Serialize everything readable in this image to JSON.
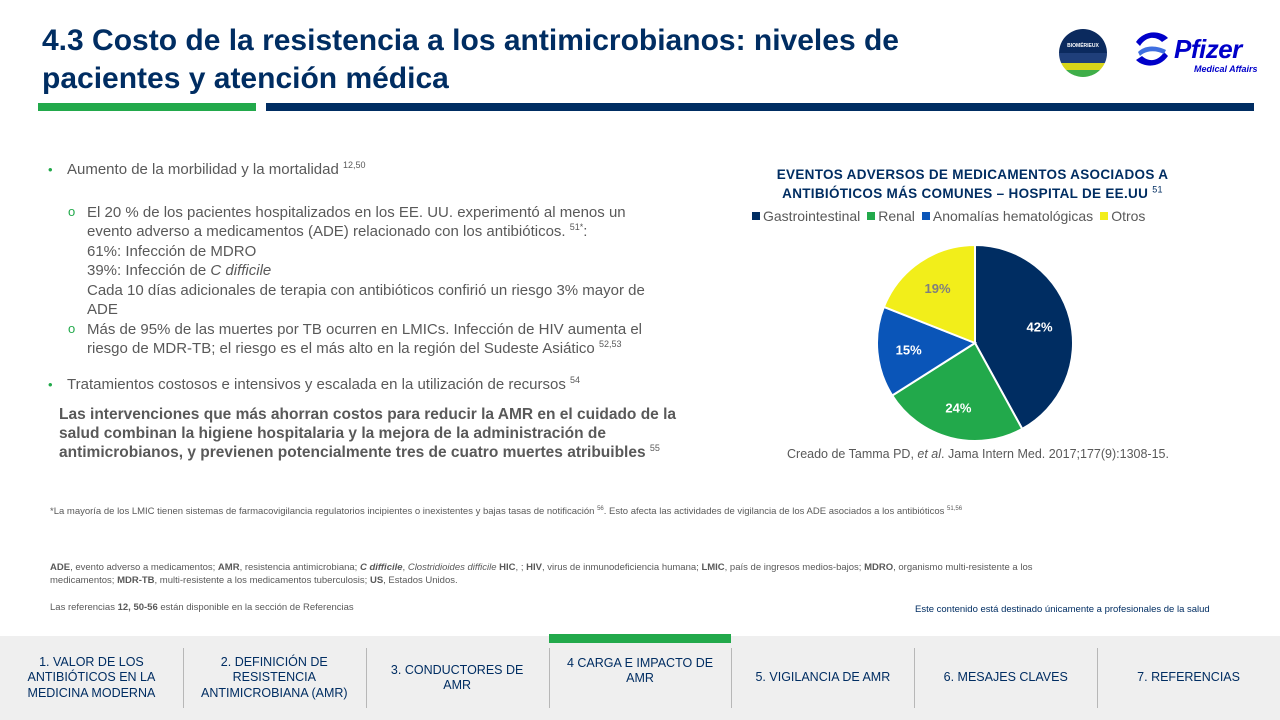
{
  "header": {
    "title_line1": "4.3 Costo de la resistencia a los antimicrobianos: niveles de",
    "title_line2": "pacientes y atención médica"
  },
  "logos": {
    "biomerieux": "BIOMÉRIEUX",
    "pfizer": "Pfizer",
    "pfizer_sub": "Medical Affairs"
  },
  "bullets": {
    "item1": "Aumento de la morbilidad y la mortalidad",
    "item1_ref": "12,50",
    "sub1_line1": "El 20 % de los pacientes hospitalizados en los EE. UU. experimentó al menos un",
    "sub1_line2": "evento adverso a medicamentos (ADE) relacionado con los antibióticos.",
    "sub1_ref": "51*",
    "sub1_after_ref": ":",
    "sub1_line3": "61%: Infección de MDRO",
    "sub1_line4_prefix": "39%: Infección de",
    "sub1_line4_italic": "C difficile",
    "sub1_line5": "Cada 10 días adicionales de terapia con antibióticos confirió un riesgo 3% mayor de",
    "sub1_line6": "ADE",
    "sub2_line1": "Más de 95% de las muertes por TB ocurren en LMICs. Infección de HIV aumenta el",
    "sub2_line2": "riesgo de MDR-TB; el riesgo es el más alto en la región del Sudeste Asiático",
    "sub2_ref": "52,53",
    "item2": "Tratamientos costosos e intensivos y escalada en la utilización de recursos",
    "item2_ref": "54"
  },
  "highlight": {
    "line1": "Las intervenciones que más ahorran costos para reducir la AMR en el cuidado de la",
    "line2": "salud combinan la higiene hospitalaria y la mejora de la administración de",
    "line3": "antimicrobianos, y previenen potencialmente tres de cuatro muertes atribuibles",
    "ref": "55"
  },
  "chart_data": {
    "type": "pie",
    "title_line1": "EVENTOS ADVERSOS DE MEDICAMENTOS ASOCIADOS A",
    "title_line2": "ANTIBIÓTICOS MÁS COMUNES – HOSPITAL DE EE.UU",
    "title_ref": "51",
    "legend_position": "top",
    "series": [
      {
        "name": "Gastrointestinal",
        "value": 42,
        "label": "42%",
        "color": "#002d62"
      },
      {
        "name": "Renal",
        "value": 24,
        "label": "24%",
        "color": "#22a94b"
      },
      {
        "name": "Anomalías hematológicas",
        "value": 15,
        "label": "15%",
        "color": "#0a55b8"
      },
      {
        "name": "Otros",
        "value": 19,
        "label": "19%",
        "color": "#f2ee1a"
      }
    ],
    "source_prefix": "Creado de Tamma PD,",
    "source_italic": "et al",
    "source_suffix": ". Jama Intern Med. 2017;177(9):1308-15."
  },
  "footnote": {
    "text1": "*La mayoría de los LMIC tienen sistemas de farmacovigilancia regulatorios incipientes o inexistentes y bajas tasas de notificación",
    "ref1": "56",
    "text2": ". Esto afecta las actividades de vigilancia de los ADE asociados a los antibióticos",
    "ref2": "51,56"
  },
  "abbreviations": {
    "ade_k": "ADE",
    "ade_v": ", evento adverso a medicamentos;",
    "amr_k": "AMR",
    "amr_v": ", resistencia antimicrobiana;",
    "cd_k": "C difficile",
    "cd_v": ",",
    "cd_full": "Clostridioides difficile",
    "hic": "HIC",
    "hic_v": ", ;",
    "hiv_k": "HIV",
    "hiv_v": ", virus de inmunodeficiencia humana;",
    "lmic_k": "LMIC",
    "lmic_v": ", país de ingresos medios-bajos;",
    "mdro_k": "MDRO",
    "mdro_v": ", organismo multi-resistente a los",
    "line2_start": "medicamentos;",
    "mdrtb_k": "MDR-TB",
    "mdrtb_v": ", multi-resistente a los medicamentos tuberculosis;",
    "us_k": "US",
    "us_v": ", Estados Unidos."
  },
  "references": {
    "prefix": "Las referencias",
    "nums": "12, 50-56",
    "suffix": "están disponible en la sección de Referencias"
  },
  "disclaimer": "Este contenido está destinado únicamente a profesionales de la salud",
  "nav": [
    {
      "label": "1. VALOR DE LOS ANTIBIÓTICOS EN LA MEDICINA MODERNA"
    },
    {
      "label": "2. DEFINICIÓN DE RESISTENCIA ANTIMICROBIANA (AMR)"
    },
    {
      "label": "3. CONDUCTORES DE AMR"
    },
    {
      "label": "4 CARGA E IMPACTO DE AMR"
    },
    {
      "label": "5. VIGILANCIA DE AMR"
    },
    {
      "label": "6. MESAJES CLAVES"
    },
    {
      "label": "7. REFERENCIAS"
    }
  ]
}
